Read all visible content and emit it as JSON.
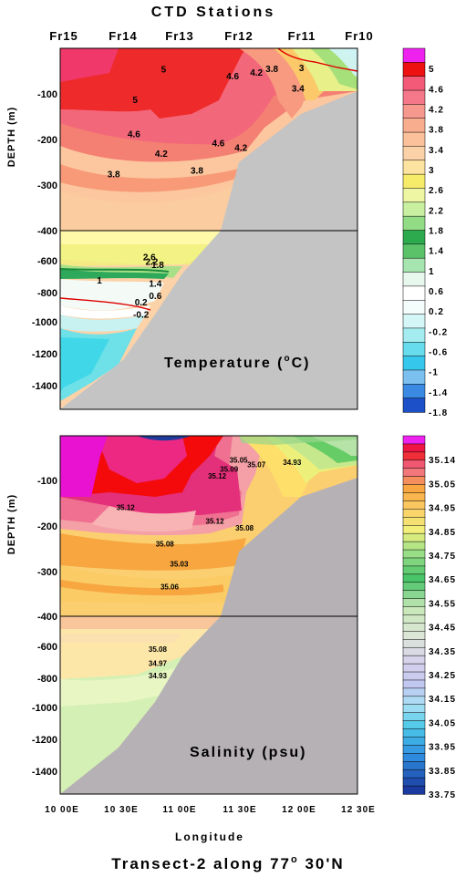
{
  "header": {
    "title": "CTD Stations",
    "stations": [
      "Fr15",
      "Fr14",
      "Fr13",
      "Fr12",
      "Fr11",
      "Fr10"
    ]
  },
  "footer": {
    "xlabel": "Longitude",
    "caption_main": "Transect-2 along 77",
    "caption_deg": "o",
    "caption_rest": " 30'N",
    "lon_ticks": [
      "10 00E",
      "10 30E",
      "11 00E",
      "11 30E",
      "12 00E",
      "12 30E"
    ]
  },
  "colors": {
    "land": "#c4c4c4",
    "land_salinity": "#b5b1b5",
    "zero_isotherm": "#dd0000"
  },
  "chart_data": [
    {
      "type": "heatmap",
      "name": "Temperature section",
      "panel_label": "Temperature (",
      "panel_label_deg": "o",
      "panel_label_unit": "C)",
      "ylabel": "DEPTH (m)",
      "x_range_lon": [
        10.0,
        12.5
      ],
      "upper_depth_range": [
        0,
        400
      ],
      "lower_depth_range": [
        400,
        1550
      ],
      "ytick_labels_upper": [
        "-100",
        "-200",
        "-300",
        "-400"
      ],
      "ytick_labels_lower": [
        "-600",
        "-800",
        "-1000",
        "-1200",
        "-1400"
      ],
      "colorbar_labels": [
        "5",
        "4.6",
        "4.2",
        "3.8",
        "3.4",
        "3",
        "2.6",
        "2.2",
        "1.8",
        "1.4",
        "1",
        "0.6",
        "0.2",
        "-0.2",
        "-0.6",
        "-1",
        "-1.4",
        "-1.8"
      ],
      "contour_labels": [
        {
          "text": "5",
          "lon": 10.63,
          "depth": 120
        },
        {
          "text": "4.6",
          "lon": 10.62,
          "depth": 195
        },
        {
          "text": "4.2",
          "lon": 10.85,
          "depth": 238
        },
        {
          "text": "3.8",
          "lon": 10.45,
          "depth": 283
        },
        {
          "text": "3.8",
          "lon": 11.15,
          "depth": 275
        },
        {
          "text": "4.6",
          "lon": 11.33,
          "depth": 215
        },
        {
          "text": "4.2",
          "lon": 11.52,
          "depth": 225
        },
        {
          "text": "4.6",
          "lon": 11.45,
          "depth": 68
        },
        {
          "text": "4.2",
          "lon": 11.65,
          "depth": 60
        },
        {
          "text": "3.8",
          "lon": 11.78,
          "depth": 52
        },
        {
          "text": "3",
          "lon": 12.03,
          "depth": 50
        },
        {
          "text": "3.4",
          "lon": 12.0,
          "depth": 95
        },
        {
          "text": "5",
          "lon": 10.87,
          "depth": 53
        },
        {
          "text": "2.6",
          "lon": 10.75,
          "depth": 590
        },
        {
          "text": "2.2",
          "lon": 10.77,
          "depth": 620
        },
        {
          "text": "1.8",
          "lon": 10.82,
          "depth": 640
        },
        {
          "text": "1",
          "lon": 10.33,
          "depth": 740
        },
        {
          "text": "1.4",
          "lon": 10.8,
          "depth": 760
        },
        {
          "text": "0.6",
          "lon": 10.8,
          "depth": 840
        },
        {
          "text": "0.2",
          "lon": 10.68,
          "depth": 880
        },
        {
          "text": "-0.2",
          "lon": 10.68,
          "depth": 960
        }
      ]
    },
    {
      "type": "heatmap",
      "name": "Salinity section",
      "panel_label": "Salinity (psu)",
      "ylabel": "DEPTH (m)",
      "xlabel": "Longitude",
      "x_range_lon": [
        10.0,
        12.5
      ],
      "upper_depth_range": [
        0,
        400
      ],
      "lower_depth_range": [
        400,
        1550
      ],
      "ytick_labels_upper": [
        "-100",
        "-200",
        "-300",
        "-400"
      ],
      "ytick_labels_lower": [
        "-600",
        "-800",
        "-1000",
        "-1200",
        "-1400"
      ],
      "colorbar_labels": [
        "35.14",
        "35.05",
        "34.95",
        "34.85",
        "34.75",
        "34.65",
        "34.55",
        "34.45",
        "34.35",
        "34.25",
        "34.15",
        "34.05",
        "33.95",
        "33.85",
        "33.75"
      ],
      "contour_labels": [
        {
          "text": "35.12",
          "lon": 11.32,
          "depth": 95
        },
        {
          "text": "35.09",
          "lon": 11.42,
          "depth": 80
        },
        {
          "text": "35.05",
          "lon": 11.5,
          "depth": 60
        },
        {
          "text": "35.07",
          "lon": 11.65,
          "depth": 70
        },
        {
          "text": "34.93",
          "lon": 11.95,
          "depth": 65
        },
        {
          "text": "35.12",
          "lon": 10.55,
          "depth": 165
        },
        {
          "text": "35.12",
          "lon": 11.3,
          "depth": 195
        },
        {
          "text": "35.08",
          "lon": 11.55,
          "depth": 210
        },
        {
          "text": "35.08",
          "lon": 10.88,
          "depth": 245
        },
        {
          "text": "35.03",
          "lon": 11.0,
          "depth": 290
        },
        {
          "text": "35.06",
          "lon": 10.92,
          "depth": 340
        },
        {
          "text": "35.08",
          "lon": 10.82,
          "depth": 630
        },
        {
          "text": "34.97",
          "lon": 10.82,
          "depth": 720
        },
        {
          "text": "34.93",
          "lon": 10.82,
          "depth": 800
        }
      ]
    }
  ]
}
